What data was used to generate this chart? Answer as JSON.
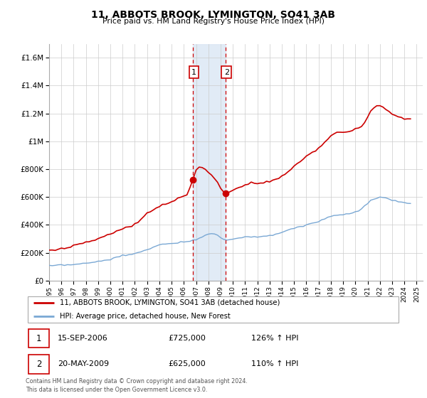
{
  "title": "11, ABBOTS BROOK, LYMINGTON, SO41 3AB",
  "subtitle": "Price paid vs. HM Land Registry's House Price Index (HPI)",
  "legend_line1": "11, ABBOTS BROOK, LYMINGTON, SO41 3AB (detached house)",
  "legend_line2": "HPI: Average price, detached house, New Forest",
  "red_color": "#cc0000",
  "blue_color": "#7aa8d4",
  "marker1_date": 2006.72,
  "marker2_date": 2009.38,
  "marker1_value": 725000,
  "marker2_value": 625000,
  "annotation1": [
    "1",
    "15-SEP-2006",
    "£725,000",
    "126% ↑ HPI"
  ],
  "annotation2": [
    "2",
    "20-MAY-2009",
    "£625,000",
    "110% ↑ HPI"
  ],
  "footer": "Contains HM Land Registry data © Crown copyright and database right 2024.\nThis data is licensed under the Open Government Licence v3.0.",
  "ylim": [
    0,
    1700000
  ],
  "xlim_start": 1995.0,
  "xlim_end": 2025.5,
  "shade_x1": 2006.72,
  "shade_x2": 2009.38,
  "hpi_years": [
    1995.0,
    1995.25,
    1995.5,
    1995.75,
    1996.0,
    1996.25,
    1996.5,
    1996.75,
    1997.0,
    1997.25,
    1997.5,
    1997.75,
    1998.0,
    1998.25,
    1998.5,
    1998.75,
    1999.0,
    1999.25,
    1999.5,
    1999.75,
    2000.0,
    2000.25,
    2000.5,
    2000.75,
    2001.0,
    2001.25,
    2001.5,
    2001.75,
    2002.0,
    2002.25,
    2002.5,
    2002.75,
    2003.0,
    2003.25,
    2003.5,
    2003.75,
    2004.0,
    2004.25,
    2004.5,
    2004.75,
    2005.0,
    2005.25,
    2005.5,
    2005.75,
    2006.0,
    2006.25,
    2006.5,
    2006.75,
    2007.0,
    2007.25,
    2007.5,
    2007.75,
    2008.0,
    2008.25,
    2008.5,
    2008.75,
    2009.0,
    2009.25,
    2009.5,
    2009.75,
    2010.0,
    2010.25,
    2010.5,
    2010.75,
    2011.0,
    2011.25,
    2011.5,
    2011.75,
    2012.0,
    2012.25,
    2012.5,
    2012.75,
    2013.0,
    2013.25,
    2013.5,
    2013.75,
    2014.0,
    2014.25,
    2014.5,
    2014.75,
    2015.0,
    2015.25,
    2015.5,
    2015.75,
    2016.0,
    2016.25,
    2016.5,
    2016.75,
    2017.0,
    2017.25,
    2017.5,
    2017.75,
    2018.0,
    2018.25,
    2018.5,
    2018.75,
    2019.0,
    2019.25,
    2019.5,
    2019.75,
    2020.0,
    2020.25,
    2020.5,
    2020.75,
    2021.0,
    2021.25,
    2021.5,
    2021.75,
    2022.0,
    2022.25,
    2022.5,
    2022.75,
    2023.0,
    2023.25,
    2023.5,
    2023.75,
    2024.0,
    2024.25,
    2024.5
  ],
  "hpi_vals": [
    105000,
    106000,
    107000,
    108000,
    110000,
    111000,
    112000,
    113000,
    115000,
    117000,
    119000,
    121000,
    123000,
    126000,
    129000,
    132000,
    136000,
    140000,
    145000,
    150000,
    155000,
    161000,
    167000,
    173000,
    179000,
    183000,
    186000,
    188000,
    191000,
    198000,
    206000,
    215000,
    224000,
    233000,
    241000,
    248000,
    254000,
    259000,
    263000,
    266000,
    269000,
    271000,
    273000,
    275000,
    278000,
    281000,
    285000,
    290000,
    296000,
    305000,
    315000,
    325000,
    335000,
    340000,
    335000,
    325000,
    308000,
    295000,
    292000,
    295000,
    299000,
    303000,
    308000,
    312000,
    315000,
    316000,
    316000,
    315000,
    314000,
    315000,
    317000,
    319000,
    322000,
    327000,
    333000,
    340000,
    348000,
    356000,
    364000,
    371000,
    377000,
    382000,
    387000,
    392000,
    397000,
    403000,
    410000,
    417000,
    425000,
    434000,
    443000,
    452000,
    460000,
    465000,
    468000,
    470000,
    472000,
    475000,
    479000,
    484000,
    490000,
    502000,
    518000,
    535000,
    555000,
    572000,
    585000,
    592000,
    595000,
    593000,
    589000,
    583000,
    577000,
    571000,
    566000,
    562000,
    558000,
    555000,
    552000
  ],
  "prop_years": [
    1995.0,
    1995.25,
    1995.5,
    1995.75,
    1996.0,
    1996.25,
    1996.5,
    1996.75,
    1997.0,
    1997.25,
    1997.5,
    1997.75,
    1998.0,
    1998.25,
    1998.5,
    1998.75,
    1999.0,
    1999.25,
    1999.5,
    1999.75,
    2000.0,
    2000.25,
    2000.5,
    2000.75,
    2001.0,
    2001.25,
    2001.5,
    2001.75,
    2002.0,
    2002.25,
    2002.5,
    2002.75,
    2003.0,
    2003.25,
    2003.5,
    2003.75,
    2004.0,
    2004.25,
    2004.5,
    2004.75,
    2005.0,
    2005.25,
    2005.5,
    2005.75,
    2006.0,
    2006.25,
    2006.5,
    2006.72,
    2007.0,
    2007.25,
    2007.5,
    2007.75,
    2008.0,
    2008.25,
    2008.5,
    2008.75,
    2009.0,
    2009.38,
    2009.75,
    2010.0,
    2010.25,
    2010.5,
    2010.75,
    2011.0,
    2011.25,
    2011.5,
    2011.75,
    2012.0,
    2012.25,
    2012.5,
    2012.75,
    2013.0,
    2013.25,
    2013.5,
    2013.75,
    2014.0,
    2014.25,
    2014.5,
    2014.75,
    2015.0,
    2015.25,
    2015.5,
    2015.75,
    2016.0,
    2016.25,
    2016.5,
    2016.75,
    2017.0,
    2017.25,
    2017.5,
    2017.75,
    2018.0,
    2018.25,
    2018.5,
    2018.75,
    2019.0,
    2019.25,
    2019.5,
    2019.75,
    2020.0,
    2020.25,
    2020.5,
    2020.75,
    2021.0,
    2021.25,
    2021.5,
    2021.75,
    2022.0,
    2022.25,
    2022.5,
    2022.75,
    2023.0,
    2023.25,
    2023.5,
    2023.75,
    2024.0,
    2024.25,
    2024.5
  ],
  "prop_vals": [
    215000,
    218000,
    221000,
    224000,
    228000,
    232000,
    236000,
    241000,
    248000,
    256000,
    263000,
    270000,
    276000,
    281000,
    286000,
    292000,
    299000,
    308000,
    318000,
    328000,
    338000,
    347000,
    355000,
    362000,
    368000,
    374000,
    382000,
    392000,
    405000,
    422000,
    442000,
    462000,
    480000,
    496000,
    510000,
    522000,
    533000,
    543000,
    552000,
    560000,
    568000,
    576000,
    585000,
    595000,
    607000,
    620000,
    665000,
    725000,
    800000,
    810000,
    810000,
    795000,
    775000,
    755000,
    735000,
    710000,
    660000,
    625000,
    640000,
    650000,
    660000,
    670000,
    680000,
    690000,
    700000,
    705000,
    705000,
    700000,
    700000,
    703000,
    707000,
    713000,
    720000,
    728000,
    738000,
    750000,
    763000,
    778000,
    795000,
    814000,
    835000,
    855000,
    873000,
    890000,
    905000,
    920000,
    936000,
    953000,
    972000,
    993000,
    1015000,
    1036000,
    1052000,
    1062000,
    1067000,
    1068000,
    1068000,
    1070000,
    1075000,
    1083000,
    1095000,
    1110000,
    1135000,
    1175000,
    1215000,
    1245000,
    1255000,
    1255000,
    1245000,
    1230000,
    1215000,
    1200000,
    1188000,
    1178000,
    1170000,
    1163000,
    1158000,
    1155000
  ]
}
